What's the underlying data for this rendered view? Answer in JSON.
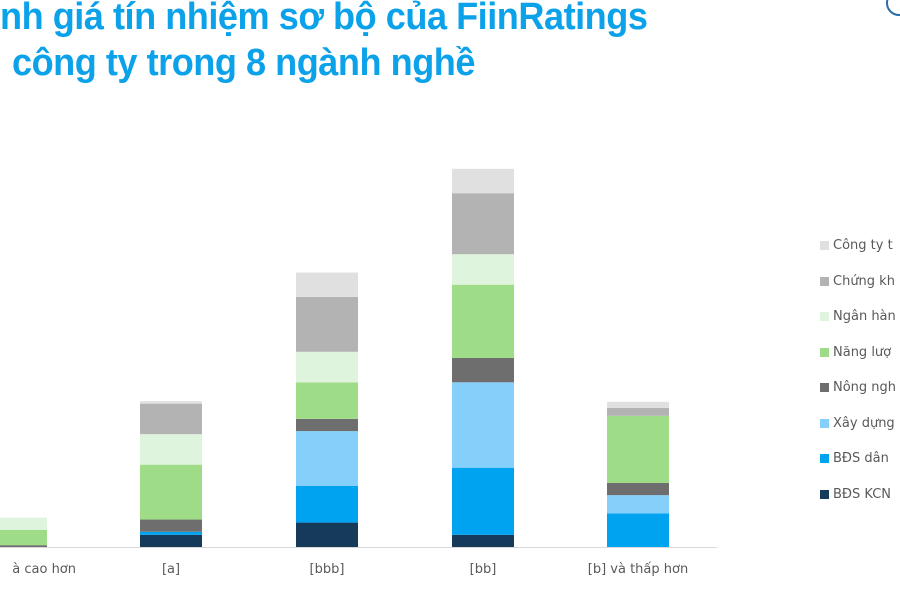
{
  "title": {
    "line1": "nh giá tín nhiệm sơ bộ của FiinRatings",
    "line2": "công ty trong 8 ngành nghề",
    "color": "#0ba2ea"
  },
  "chart_data": {
    "type": "bar",
    "stacked": true,
    "categories": [
      "à cao hơn",
      "[a]",
      "[bbb]",
      "[bb]",
      "[b] và thấp hơn"
    ],
    "legend_position": "right",
    "grid": false,
    "series": [
      {
        "name": "BĐS KCN",
        "color": "#163a5a",
        "values": [
          0,
          2,
          4,
          2,
          0
        ]
      },
      {
        "name": "BĐS dân",
        "color": "#00a3f0",
        "values": [
          0,
          0.5,
          6,
          11,
          5.5
        ]
      },
      {
        "name": "Xây dựng",
        "color": "#84d0fb",
        "values": [
          0,
          0,
          9,
          14,
          3
        ]
      },
      {
        "name": "Nông ngh",
        "color": "#6e6e6e",
        "values": [
          0.3,
          2,
          2,
          4,
          2
        ]
      },
      {
        "name": "Năng lượ",
        "color": "#9fdc87",
        "values": [
          2.5,
          9,
          6,
          12,
          11
        ]
      },
      {
        "name": "Ngân hàn",
        "color": "#dff4dc",
        "values": [
          2,
          5,
          5,
          5,
          0
        ]
      },
      {
        "name": "Chứng kh",
        "color": "#b3b3b3",
        "values": [
          0,
          5,
          9,
          10,
          1.3
        ]
      },
      {
        "name": "Công ty t",
        "color": "#e0e0e0",
        "values": [
          0,
          0.4,
          4,
          4,
          1
        ]
      }
    ]
  }
}
